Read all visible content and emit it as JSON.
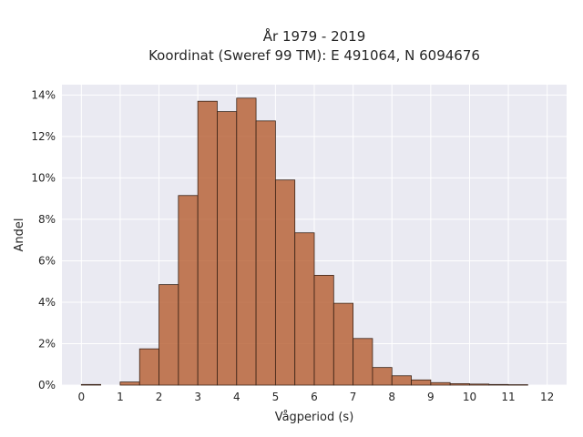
{
  "chart_data": {
    "type": "bar",
    "title_line1": "År 1979 - 2019",
    "title_line2": "Koordinat (Sweref 99 TM): E 491064, N 6094676",
    "xlabel": "Vågperiod (s)",
    "ylabel": "Andel",
    "xlim": [
      -0.5,
      12.5
    ],
    "ylim": [
      0,
      14.5
    ],
    "x_ticks": [
      "0",
      "1",
      "2",
      "3",
      "4",
      "5",
      "6",
      "7",
      "8",
      "9",
      "10",
      "11",
      "12"
    ],
    "y_ticks": [
      "0%",
      "2%",
      "4%",
      "6%",
      "8%",
      "10%",
      "12%",
      "14%"
    ],
    "bin_width": 0.5,
    "bins": [
      {
        "start": 0.0,
        "value": 0.03
      },
      {
        "start": 0.5,
        "value": 0.0
      },
      {
        "start": 1.0,
        "value": 0.15
      },
      {
        "start": 1.5,
        "value": 1.75
      },
      {
        "start": 2.0,
        "value": 4.85
      },
      {
        "start": 2.5,
        "value": 9.15
      },
      {
        "start": 3.0,
        "value": 13.7
      },
      {
        "start": 3.5,
        "value": 13.2
      },
      {
        "start": 4.0,
        "value": 13.85
      },
      {
        "start": 4.5,
        "value": 12.75
      },
      {
        "start": 5.0,
        "value": 9.9
      },
      {
        "start": 5.5,
        "value": 7.35
      },
      {
        "start": 6.0,
        "value": 5.3
      },
      {
        "start": 6.5,
        "value": 3.95
      },
      {
        "start": 7.0,
        "value": 2.25
      },
      {
        "start": 7.5,
        "value": 0.85
      },
      {
        "start": 8.0,
        "value": 0.45
      },
      {
        "start": 8.5,
        "value": 0.25
      },
      {
        "start": 9.0,
        "value": 0.12
      },
      {
        "start": 9.5,
        "value": 0.07
      },
      {
        "start": 10.0,
        "value": 0.05
      },
      {
        "start": 10.5,
        "value": 0.03
      },
      {
        "start": 11.0,
        "value": 0.02
      }
    ],
    "grid": true,
    "colors": {
      "bar": "#b4582a",
      "background": "#eaeaf2"
    }
  }
}
